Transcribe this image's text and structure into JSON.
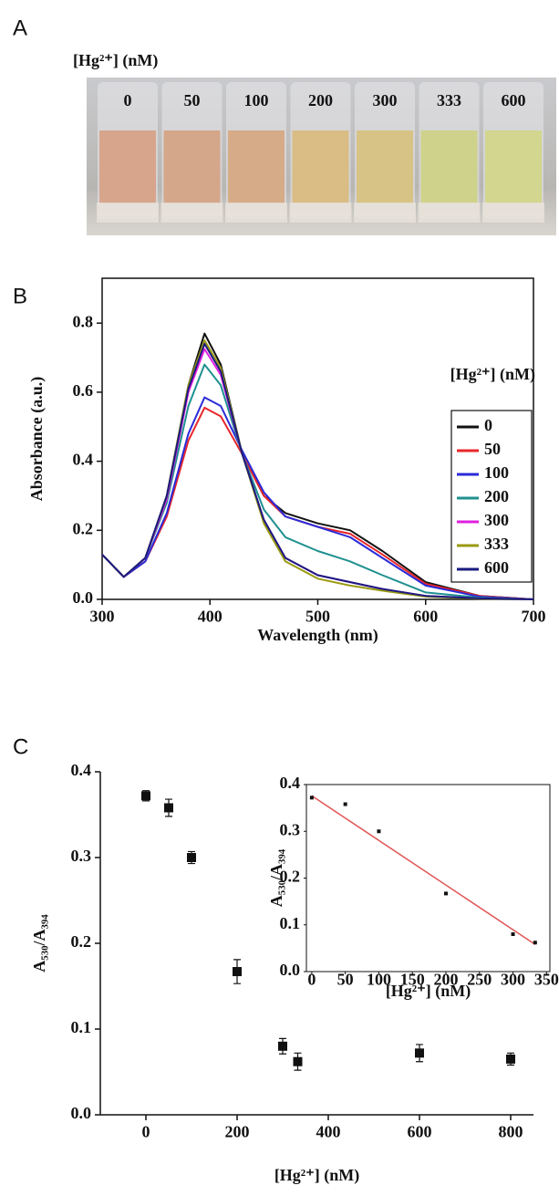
{
  "photo": {
    "panel": "A",
    "title": "[Hg²⁺] (nM)",
    "labels": [
      "0",
      "50",
      "100",
      "200",
      "300",
      "333",
      "600"
    ]
  },
  "chart_data": [
    {
      "type": "line",
      "panel": "B",
      "xlabel": "Wavelength (nm)",
      "ylabel": "Absorbance (a.u.)",
      "legend_title": "[Hg²⁺] (nM)",
      "legend": "right",
      "xlim": [
        300,
        700
      ],
      "ylim": [
        0,
        0.93
      ],
      "xticks": [
        300,
        400,
        500,
        600,
        700
      ],
      "yticks": [
        {
          "value": 0,
          "label": "0.0"
        },
        0.2,
        0.4,
        0.6,
        0.8
      ],
      "x": [
        300,
        320,
        340,
        360,
        380,
        395,
        410,
        430,
        450,
        470,
        500,
        530,
        560,
        600,
        650,
        700
      ],
      "series": [
        {
          "name": "0",
          "color": "#111111",
          "values": [
            0.13,
            0.065,
            0.12,
            0.3,
            0.62,
            0.77,
            0.68,
            0.42,
            0.3,
            0.25,
            0.22,
            0.2,
            0.14,
            0.05,
            0.01,
            0
          ]
        },
        {
          "name": "50",
          "color": "#e8262b",
          "values": [
            0.13,
            0.065,
            0.11,
            0.24,
            0.46,
            0.555,
            0.53,
            0.42,
            0.3,
            0.24,
            0.21,
            0.19,
            0.13,
            0.045,
            0.01,
            0
          ]
        },
        {
          "name": "100",
          "color": "#2a2ad8",
          "values": [
            0.13,
            0.065,
            0.11,
            0.25,
            0.48,
            0.585,
            0.56,
            0.43,
            0.31,
            0.24,
            0.21,
            0.18,
            0.12,
            0.04,
            0.008,
            0
          ]
        },
        {
          "name": "200",
          "color": "#1f9090",
          "values": [
            0.13,
            0.065,
            0.12,
            0.28,
            0.56,
            0.68,
            0.62,
            0.42,
            0.26,
            0.18,
            0.14,
            0.11,
            0.07,
            0.02,
            0.005,
            0
          ]
        },
        {
          "name": "300",
          "color": "#e020e0",
          "values": [
            0.13,
            0.065,
            0.12,
            0.29,
            0.6,
            0.725,
            0.65,
            0.42,
            0.23,
            0.12,
            0.07,
            0.05,
            0.03,
            0.01,
            0.003,
            0
          ]
        },
        {
          "name": "333",
          "color": "#9a9a10",
          "values": [
            0.13,
            0.065,
            0.12,
            0.3,
            0.62,
            0.75,
            0.67,
            0.42,
            0.22,
            0.11,
            0.06,
            0.04,
            0.025,
            0.008,
            0.002,
            0
          ]
        },
        {
          "name": "600",
          "color": "#1a1a80",
          "values": [
            0.13,
            0.065,
            0.12,
            0.3,
            0.61,
            0.74,
            0.66,
            0.42,
            0.23,
            0.12,
            0.07,
            0.05,
            0.03,
            0.01,
            0.003,
            0
          ]
        }
      ]
    },
    {
      "type": "scatter",
      "panel": "C",
      "xlabel": "[Hg²⁺] (nM)",
      "ylabel": "A₅₃₀/A₃₉₄",
      "color": "#111111",
      "xlim": [
        -100,
        850
      ],
      "ylim": [
        0,
        0.4
      ],
      "xticks": [
        0,
        200,
        400,
        600,
        800
      ],
      "yticks": [
        {
          "value": 0,
          "label": "0.0"
        },
        0.1,
        0.2,
        0.3,
        0.4
      ],
      "x": [
        0,
        50,
        100,
        200,
        300,
        333,
        600,
        800
      ],
      "values": [
        0.372,
        0.358,
        0.3,
        0.167,
        0.08,
        0.062,
        0.072,
        0.065
      ],
      "errors": [
        0.006,
        0.01,
        0.007,
        0.014,
        0.009,
        0.01,
        0.01,
        0.007
      ],
      "inset": {
        "type": "scatter",
        "xlabel": "[Hg²⁺] (nM)",
        "ylabel": "A₅₃₀/A₃₉₄",
        "color": "#111111",
        "xlim": [
          -8,
          355
        ],
        "ylim": [
          0,
          0.4
        ],
        "xticks": [
          0,
          50,
          100,
          150,
          200,
          250,
          300,
          350
        ],
        "yticks": [
          {
            "value": 0,
            "label": "0.0"
          },
          0.1,
          0.2,
          0.3,
          0.4
        ],
        "x": [
          0,
          50,
          100,
          200,
          300,
          333
        ],
        "values": [
          0.372,
          0.358,
          0.3,
          0.167,
          0.08,
          0.062
        ],
        "fit": {
          "color": "#e05555",
          "x": [
            0,
            333
          ],
          "values": [
            0.376,
            0.058
          ]
        }
      }
    }
  ]
}
